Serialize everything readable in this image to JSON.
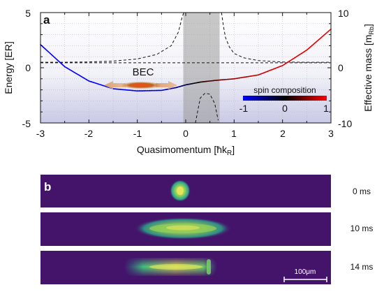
{
  "panel_a": {
    "label": "a",
    "chart_data": {
      "type": "line",
      "xlabel": "Quasimomentum [ħk",
      "xlabel_sub": "R",
      "xlabel_end": "]",
      "ylabel_left": "Energy [ER]",
      "ylabel_right": "Effective mass [m",
      "ylabel_right_sub": "Rb",
      "ylabel_right_end": "]",
      "xlim": [
        -3,
        3
      ],
      "ylim_left": [
        -5,
        5
      ],
      "ylim_right": [
        -10,
        10
      ],
      "x_ticks": [
        "-3",
        "-2",
        "-1",
        "0",
        "1",
        "2",
        "3"
      ],
      "y_left_ticks": [
        "-5",
        "0",
        "5"
      ],
      "y_right_ticks": [
        "-10",
        "0",
        "10"
      ],
      "grid": true,
      "shaded_region": [
        -0.05,
        0.7
      ],
      "dispersion": {
        "name": "Energy",
        "x": [
          -3.0,
          -2.5,
          -2.0,
          -1.5,
          -1.0,
          -0.5,
          -0.2,
          0.0,
          0.3,
          0.6,
          1.0,
          1.5,
          2.0,
          2.5,
          3.0
        ],
        "y": [
          2.1,
          0.1,
          -1.2,
          -1.9,
          -2.1,
          -2.05,
          -1.8,
          -1.55,
          -1.3,
          -1.15,
          -1.0,
          -0.65,
          0.2,
          1.6,
          3.5
        ]
      },
      "spin_composition": {
        "x": [
          -3.0,
          -2.5,
          -2.0,
          -1.5,
          -1.0,
          -0.5,
          -0.2,
          0.0,
          0.3,
          0.6,
          1.0,
          1.5,
          2.0,
          2.5,
          3.0
        ],
        "values": [
          -1.0,
          -1.0,
          -1.0,
          -0.98,
          -0.95,
          -0.85,
          -0.6,
          -0.3,
          0.1,
          0.4,
          0.7,
          0.9,
          0.97,
          1.0,
          1.0
        ]
      },
      "effective_mass": {
        "name": "Effective mass",
        "x": [
          -3.0,
          -2.5,
          -2.0,
          -1.5,
          -1.0,
          -0.6,
          -0.3,
          -0.15,
          -0.08,
          -0.04,
          0.2,
          0.3,
          0.4,
          0.5,
          0.6,
          0.67,
          0.74,
          0.78,
          0.82,
          0.9,
          1.0,
          1.2,
          1.5,
          2.0,
          2.5,
          3.0
        ],
        "y": [
          1.0,
          1.0,
          1.05,
          1.2,
          1.6,
          2.4,
          4.0,
          6.5,
          9.0,
          10.0,
          -10.0,
          -5.5,
          -4.6,
          -4.8,
          -6.5,
          -9.5,
          10.0,
          7.5,
          5.5,
          3.8,
          2.6,
          1.8,
          1.3,
          1.05,
          1.0,
          1.0
        ]
      },
      "annotations": [
        "BEC"
      ],
      "colorbar": {
        "title": "spin composition",
        "ticks": [
          "-1",
          "0",
          "1"
        ],
        "colors": [
          "#0000ff",
          "#000000",
          "#ff0000"
        ]
      }
    }
  },
  "panel_b": {
    "label": "b",
    "frames": [
      {
        "time": "0 ms"
      },
      {
        "time": "10 ms"
      },
      {
        "time": "14 ms"
      }
    ],
    "scalebar": "100μm",
    "background": "#44146b"
  }
}
